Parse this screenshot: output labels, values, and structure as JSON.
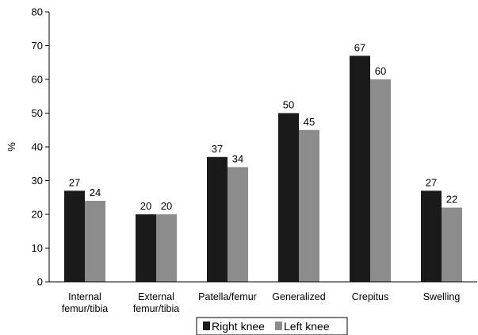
{
  "chart_data": {
    "type": "bar",
    "title": "",
    "xlabel": "",
    "ylabel": "%",
    "ylim": [
      0,
      80
    ],
    "yticks": [
      0,
      10,
      20,
      30,
      40,
      50,
      60,
      70,
      80
    ],
    "grid": false,
    "legend_position": "bottom",
    "categories": [
      [
        "Internal",
        "femur/tibia"
      ],
      [
        "External",
        "femur/tibia"
      ],
      [
        "Patella/femur"
      ],
      [
        "Generalized"
      ],
      [
        "Crepitus"
      ],
      [
        "Swelling"
      ]
    ],
    "series": [
      {
        "name": "Right knee",
        "color": "#1a1a1a",
        "values": [
          27,
          20,
          37,
          50,
          67,
          27
        ]
      },
      {
        "name": "Left knee",
        "color": "#8c8c8c",
        "values": [
          24,
          20,
          34,
          45,
          60,
          22
        ]
      }
    ]
  }
}
